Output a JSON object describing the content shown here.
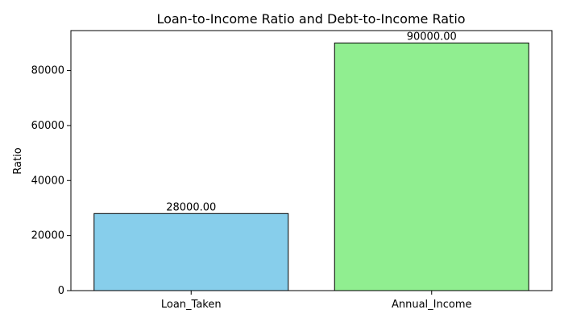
{
  "chart_data": {
    "type": "bar",
    "title": "Loan-to-Income Ratio and Debt-to-Income Ratio",
    "xlabel": "",
    "ylabel": "Ratio",
    "categories": [
      "Loan_Taken",
      "Annual_Income"
    ],
    "values": [
      28000,
      90000
    ],
    "data_labels": [
      "28000.00",
      "90000.00"
    ],
    "colors": [
      "#87ceeb",
      "#90ee90"
    ],
    "edge_color": "#000000",
    "ylim": [
      0,
      94500
    ],
    "yticks": [
      0,
      20000,
      40000,
      60000,
      80000
    ],
    "ytick_labels": [
      "0",
      "20000",
      "40000",
      "60000",
      "80000"
    ],
    "grid": false,
    "legend": "none"
  }
}
